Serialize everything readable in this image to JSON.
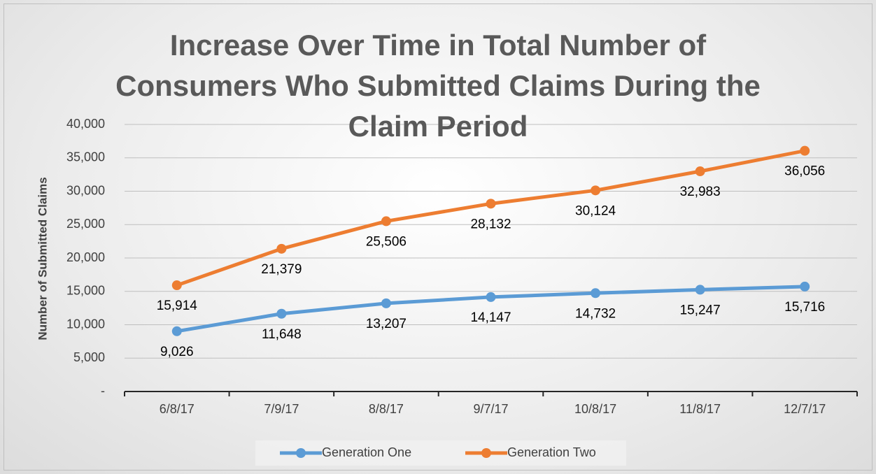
{
  "chart_data": {
    "type": "line",
    "title": "Increase Over Time in Total Number of Consumers Who Submitted Claims During the Claim Period",
    "y_label": "Number of Submitted Claims",
    "categories": [
      "6/8/17",
      "7/9/17",
      "8/8/17",
      "9/7/17",
      "10/8/17",
      "11/8/17",
      "12/7/17"
    ],
    "series": [
      {
        "name": "Generation One",
        "color": "#5b9bd5",
        "values": [
          9026,
          11648,
          13207,
          14147,
          14732,
          15247,
          15716
        ],
        "value_labels": [
          "9,026",
          "11,648",
          "13,207",
          "14,147",
          "14,732",
          "15,247",
          "15,716"
        ]
      },
      {
        "name": "Generation Two",
        "color": "#ed7d31",
        "values": [
          15914,
          21379,
          25506,
          28132,
          30124,
          32983,
          36056
        ],
        "value_labels": [
          "15,914",
          "21,379",
          "25,506",
          "28,132",
          "30,124",
          "32,983",
          "36,056"
        ]
      }
    ],
    "ylim": [
      0,
      40000
    ],
    "yticks": [
      {
        "value": 0,
        "label": "-"
      },
      {
        "value": 5000,
        "label": "5,000"
      },
      {
        "value": 10000,
        "label": "10,000"
      },
      {
        "value": 15000,
        "label": "15,000"
      },
      {
        "value": 20000,
        "label": "20,000"
      },
      {
        "value": 25000,
        "label": "25,000"
      },
      {
        "value": 30000,
        "label": "30,000"
      },
      {
        "value": 35000,
        "label": "35,000"
      },
      {
        "value": 40000,
        "label": "40,000"
      }
    ],
    "grid": true,
    "legend": "bottom"
  }
}
